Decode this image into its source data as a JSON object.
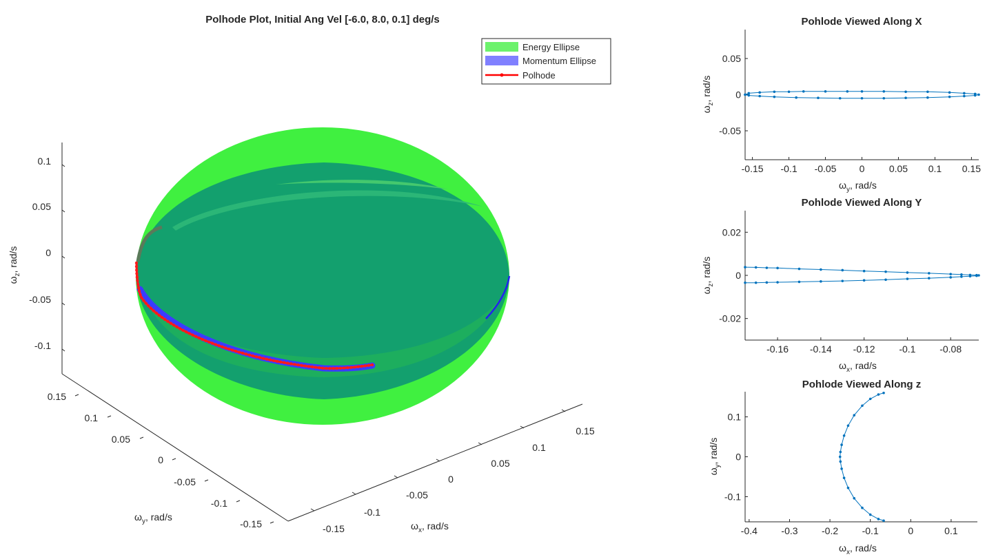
{
  "chart_data": [
    {
      "type": "scatter",
      "title": "Polhode Plot, Initial Ang Vel [-6.0, 8.0, 0.1] deg/s",
      "xlabel": {
        "main": "ω",
        "sub": "x",
        "rest": ", rad/s"
      },
      "ylabel": {
        "main": "ω",
        "sub": "y",
        "rest": ", rad/s"
      },
      "zlabel": {
        "main": "ω",
        "sub": "z",
        "rest": ", rad/s"
      },
      "xticks": [
        "-0.15",
        "-0.1",
        "-0.05",
        "0",
        "0.05",
        "0.1",
        "0.15"
      ],
      "yticks": [
        "0.15",
        "0.1",
        "0.05",
        "0",
        "-0.05",
        "-0.1",
        "-0.15"
      ],
      "zticks": [
        "0.1",
        "0.05",
        "0",
        "-0.05",
        "-0.1"
      ],
      "legend": {
        "position": "top-right",
        "entries": [
          {
            "label": "Energy Ellipse",
            "color": "#6cf26c"
          },
          {
            "label": "Momentum Ellipse",
            "color": "#8080ff"
          },
          {
            "label": "Polhode",
            "color": "#ff0000"
          }
        ]
      },
      "colors": {
        "energy": "#40f040",
        "energy_dark": "#13a06e",
        "momentum": "#3333ff",
        "polhode": "#ff1a1a"
      }
    },
    {
      "type": "line",
      "title": "Pohlode Viewed Along X",
      "xlabel": {
        "main": "ω",
        "sub": "y",
        "rest": ", rad/s"
      },
      "ylabel": {
        "main": "ω",
        "sub": "z",
        "rest": ", rad/s"
      },
      "xlim": [
        -0.16,
        0.16
      ],
      "ylim": [
        -0.09,
        0.09
      ],
      "xticks": [
        -0.15,
        -0.1,
        -0.05,
        0,
        0.05,
        0.1,
        0.15
      ],
      "xtick_labels": [
        "-0.15",
        "-0.1",
        "-0.05",
        "0",
        "0.05",
        "0.1",
        "0.15"
      ],
      "yticks": [
        0.05,
        0,
        -0.05
      ],
      "ytick_labels": [
        "0.05",
        "0",
        "-0.05"
      ],
      "color": "#0072bd",
      "series": [
        {
          "x": [
            -0.16,
            -0.155,
            -0.14,
            -0.12,
            -0.1,
            -0.08,
            -0.05,
            -0.02,
            0.0,
            0.03,
            0.06,
            0.09,
            0.12,
            0.14,
            0.155,
            0.16,
            0.155,
            0.14,
            0.12,
            0.09,
            0.06,
            0.03,
            0.0,
            -0.03,
            -0.06,
            -0.09,
            -0.12,
            -0.14,
            -0.155,
            -0.16
          ],
          "y": [
            0.0,
            0.002,
            0.003,
            0.004,
            0.004,
            0.0045,
            0.0045,
            0.0045,
            0.0045,
            0.0045,
            0.004,
            0.004,
            0.003,
            0.002,
            0.001,
            0.0,
            -0.001,
            -0.002,
            -0.003,
            -0.004,
            -0.0045,
            -0.005,
            -0.005,
            -0.005,
            -0.0045,
            -0.004,
            -0.003,
            -0.002,
            -0.001,
            0.0
          ]
        }
      ]
    },
    {
      "type": "line",
      "title": "Pohlode Viewed Along Y",
      "xlabel": {
        "main": "ω",
        "sub": "x",
        "rest": ", rad/s"
      },
      "ylabel": {
        "main": "ω",
        "sub": "z",
        "rest": ", rad/s"
      },
      "xlim": [
        -0.175,
        -0.067
      ],
      "ylim": [
        -0.03,
        0.03
      ],
      "xticks": [
        -0.16,
        -0.14,
        -0.12,
        -0.1,
        -0.08
      ],
      "xtick_labels": [
        "-0.16",
        "-0.14",
        "-0.12",
        "-0.1",
        "-0.08"
      ],
      "yticks": [
        0.02,
        0,
        -0.02
      ],
      "ytick_labels": [
        "0.02",
        "0",
        "-0.02"
      ],
      "color": "#0072bd",
      "series": [
        {
          "x": [
            -0.175,
            -0.17,
            -0.165,
            -0.16,
            -0.15,
            -0.14,
            -0.13,
            -0.12,
            -0.11,
            -0.1,
            -0.09,
            -0.08,
            -0.075,
            -0.071,
            -0.068,
            -0.067,
            -0.068,
            -0.071,
            -0.075,
            -0.08,
            -0.09,
            -0.1,
            -0.11,
            -0.12,
            -0.13,
            -0.14,
            -0.15,
            -0.16,
            -0.165,
            -0.17,
            -0.175
          ],
          "y": [
            0.0038,
            0.0037,
            0.0035,
            0.0034,
            0.003,
            0.0027,
            0.0024,
            0.002,
            0.0017,
            0.0013,
            0.001,
            0.0006,
            0.0004,
            0.0002,
            0.0001,
            0.0,
            -0.0002,
            -0.0004,
            -0.0006,
            -0.0009,
            -0.0013,
            -0.0016,
            -0.002,
            -0.0023,
            -0.0026,
            -0.0028,
            -0.003,
            -0.0032,
            -0.0033,
            -0.0034,
            -0.0034
          ]
        }
      ]
    },
    {
      "type": "line",
      "title": "Pohlode Viewed Along z",
      "xlabel": {
        "main": "ω",
        "sub": "x",
        "rest": ", rad/s"
      },
      "ylabel": {
        "main": "ω",
        "sub": "y",
        "rest": ", rad/s"
      },
      "xlim": [
        -0.41,
        0.165
      ],
      "ylim": [
        -0.163,
        0.163
      ],
      "xticks": [
        -0.4,
        -0.3,
        -0.2,
        -0.1,
        0,
        0.1
      ],
      "xtick_labels": [
        "-0.4",
        "-0.3",
        "-0.2",
        "-0.1",
        "0",
        "0.1"
      ],
      "yticks": [
        0.1,
        0,
        -0.1
      ],
      "ytick_labels": [
        "0.1",
        "0",
        "-0.1"
      ],
      "color": "#0072bd",
      "series": [
        {
          "x": [
            -0.067,
            -0.08,
            -0.1,
            -0.12,
            -0.14,
            -0.155,
            -0.165,
            -0.171,
            -0.174,
            -0.175,
            -0.174,
            -0.171,
            -0.165,
            -0.155,
            -0.14,
            -0.12,
            -0.1,
            -0.08,
            -0.067
          ],
          "y": [
            0.16,
            0.156,
            0.145,
            0.128,
            0.104,
            0.078,
            0.053,
            0.03,
            0.012,
            0.0,
            -0.012,
            -0.03,
            -0.053,
            -0.078,
            -0.104,
            -0.128,
            -0.145,
            -0.156,
            -0.16
          ]
        }
      ]
    }
  ]
}
